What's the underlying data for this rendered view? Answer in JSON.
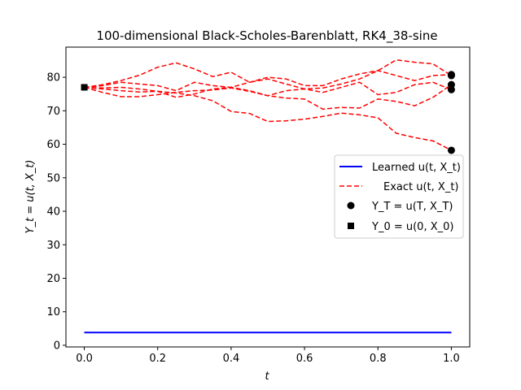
{
  "chart_data": {
    "type": "line",
    "title": "100-dimensional Black-Scholes-Barenblatt, RK4_38-sine",
    "xlabel": "t",
    "ylabel": "Y_t = u(t, X_t)",
    "xlim": [
      -0.05,
      1.05
    ],
    "ylim": [
      -0.5,
      89
    ],
    "xticks": [
      "0.0",
      "0.2",
      "0.4",
      "0.6",
      "0.8",
      "1.0"
    ],
    "yticks": [
      "0",
      "10",
      "20",
      "30",
      "40",
      "50",
      "60",
      "70",
      "80"
    ],
    "grid": false,
    "legend_position": "center-right",
    "legend": [
      {
        "label": "Learned u(t, X_t)",
        "style": "line",
        "color": "#0000ff"
      },
      {
        "label": "Exact u(t, X_t)",
        "style": "dashed",
        "color": "#ff0000"
      },
      {
        "label": "Y_T = u(T, X_T)",
        "style": "circle",
        "color": "#000000"
      },
      {
        "label": "Y_0 = u(0, X_0)",
        "style": "square",
        "color": "#000000"
      }
    ],
    "learned": {
      "x": [
        0,
        1
      ],
      "y": [
        3.8,
        3.8
      ],
      "color": "#0000ff"
    },
    "exact_series": [
      {
        "x": [
          0,
          0.05,
          0.1,
          0.15,
          0.2,
          0.25,
          0.3,
          0.35,
          0.4,
          0.45,
          0.5,
          0.55,
          0.6,
          0.65,
          0.7,
          0.75,
          0.8,
          0.85,
          0.9,
          0.95,
          1.0
        ],
        "y": [
          77,
          76.5,
          76,
          75.6,
          75.8,
          75.3,
          74.5,
          73,
          69.8,
          69.2,
          66.8,
          67,
          67.5,
          68.3,
          69.3,
          68.8,
          67.9,
          63.3,
          62,
          61,
          58.2
        ]
      },
      {
        "x": [
          0,
          0.05,
          0.1,
          0.15,
          0.2,
          0.25,
          0.3,
          0.35,
          0.4,
          0.45,
          0.5,
          0.55,
          0.6,
          0.65,
          0.7,
          0.75,
          0.8,
          0.85,
          0.9,
          0.95,
          1.0
        ],
        "y": [
          77,
          77.8,
          79,
          80.6,
          83,
          84.3,
          82.5,
          80.2,
          81.5,
          78.5,
          79.5,
          78,
          76.5,
          76.8,
          78,
          79.5,
          82,
          85.2,
          84.5,
          84,
          80.5
        ]
      },
      {
        "x": [
          0,
          0.05,
          0.1,
          0.15,
          0.2,
          0.25,
          0.3,
          0.35,
          0.4,
          0.45,
          0.5,
          0.55,
          0.6,
          0.65,
          0.7,
          0.75,
          0.8,
          0.85,
          0.9,
          0.95,
          1.0
        ],
        "y": [
          77,
          77.5,
          78.5,
          78,
          77.5,
          76,
          78.5,
          77.5,
          77,
          78.5,
          80,
          79.5,
          77.5,
          77.5,
          79.5,
          81,
          82,
          80.5,
          79,
          80.5,
          80.8
        ]
      },
      {
        "x": [
          0,
          0.05,
          0.1,
          0.15,
          0.2,
          0.25,
          0.3,
          0.35,
          0.4,
          0.45,
          0.5,
          0.55,
          0.6,
          0.65,
          0.7,
          0.75,
          0.8,
          0.85,
          0.9,
          0.95,
          1.0
        ],
        "y": [
          77,
          75.5,
          74.2,
          74.2,
          74.8,
          75.5,
          76,
          76.2,
          76.8,
          75.8,
          74.5,
          76,
          76.5,
          75.5,
          77,
          78.5,
          74.8,
          75.5,
          77.8,
          78.5,
          76.3
        ]
      },
      {
        "x": [
          0,
          0.05,
          0.1,
          0.15,
          0.2,
          0.25,
          0.3,
          0.35,
          0.4,
          0.45,
          0.5,
          0.55,
          0.6,
          0.65,
          0.7,
          0.75,
          0.8,
          0.85,
          0.9,
          0.95,
          1.0
        ],
        "y": [
          77,
          76.8,
          77,
          76.5,
          75.8,
          74,
          75,
          76.5,
          77,
          76,
          74.5,
          73.8,
          73.5,
          70.5,
          71,
          70.8,
          73.5,
          72.8,
          71.5,
          74,
          77.8
        ]
      }
    ],
    "start_point": {
      "x": 0,
      "y": 77
    },
    "end_points": {
      "x": [
        1,
        1,
        1,
        1,
        1
      ],
      "y": [
        58.2,
        80.5,
        80.8,
        76.3,
        77.8
      ]
    }
  }
}
